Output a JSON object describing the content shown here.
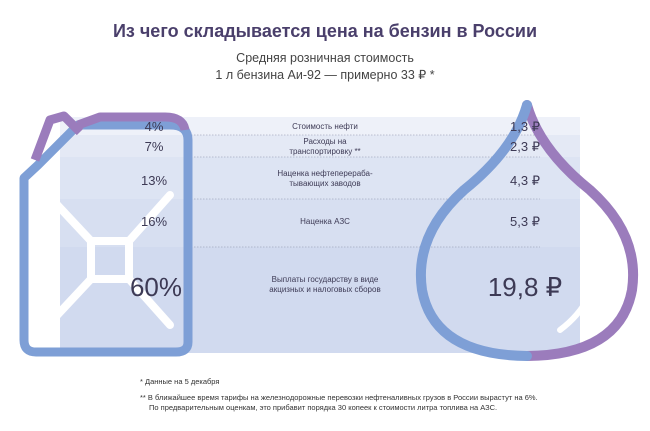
{
  "header": {
    "title": "Из чего складывается цена на бензин в России",
    "subtitle_line1": "Средняя розничная стоимость",
    "subtitle_line2": "1 л бензина Аи-92 — примерно 33 ₽ *"
  },
  "colors": {
    "blue_outline": "#7e9fd6",
    "purple_outline": "#9b7cbc",
    "band_fill": "#dde4f3",
    "text": "#3d3a55"
  },
  "chart_data": {
    "type": "table",
    "title": "Из чего складывается цена на бензин в России",
    "total_label": "1 л бензина Аи-92 — примерно 33 ₽ *",
    "rows": [
      {
        "percent": "4%",
        "label": "Стоимость нефти",
        "price": "1,3 ₽"
      },
      {
        "percent": "7%",
        "label": "Расходы на транспортировку **",
        "price": "2,3 ₽"
      },
      {
        "percent": "13%",
        "label": "Наценка нефтеперераба-тывающих заводов",
        "price": "4,3 ₽"
      },
      {
        "percent": "16%",
        "label": "Наценка АЗС",
        "price": "5,3 ₽"
      },
      {
        "percent": "60%",
        "label": "Выплаты государству в виде акцизных и налоговых сборов",
        "price": "19,8 ₽"
      }
    ],
    "percent_values": [
      4,
      7,
      13,
      16,
      60
    ],
    "price_values": [
      1.3,
      2.3,
      4.3,
      5.3,
      19.8
    ]
  },
  "labels": {
    "row0_desc": "Стоимость нефти",
    "row1_desc_l1": "Расходы на",
    "row1_desc_l2": "транспортировку **",
    "row2_desc_l1": "Наценка нефтеперераба-",
    "row2_desc_l2": "тывающих заводов",
    "row3_desc": "Наценка АЗС",
    "row4_desc_l1": "Выплаты государству в виде",
    "row4_desc_l2": "акцизных и налоговых сборов"
  },
  "footnotes": {
    "note1": "* Данные на 5 декабря",
    "note2_l1": "** В ближайшее время тарифы на железнодорожные перевозки нефтеналивных грузов в России вырастут на 6%.",
    "note2_l2": "По предварительным оценкам, это прибавит порядка 30 копеек к стоимости литра топлива на АЗС."
  }
}
